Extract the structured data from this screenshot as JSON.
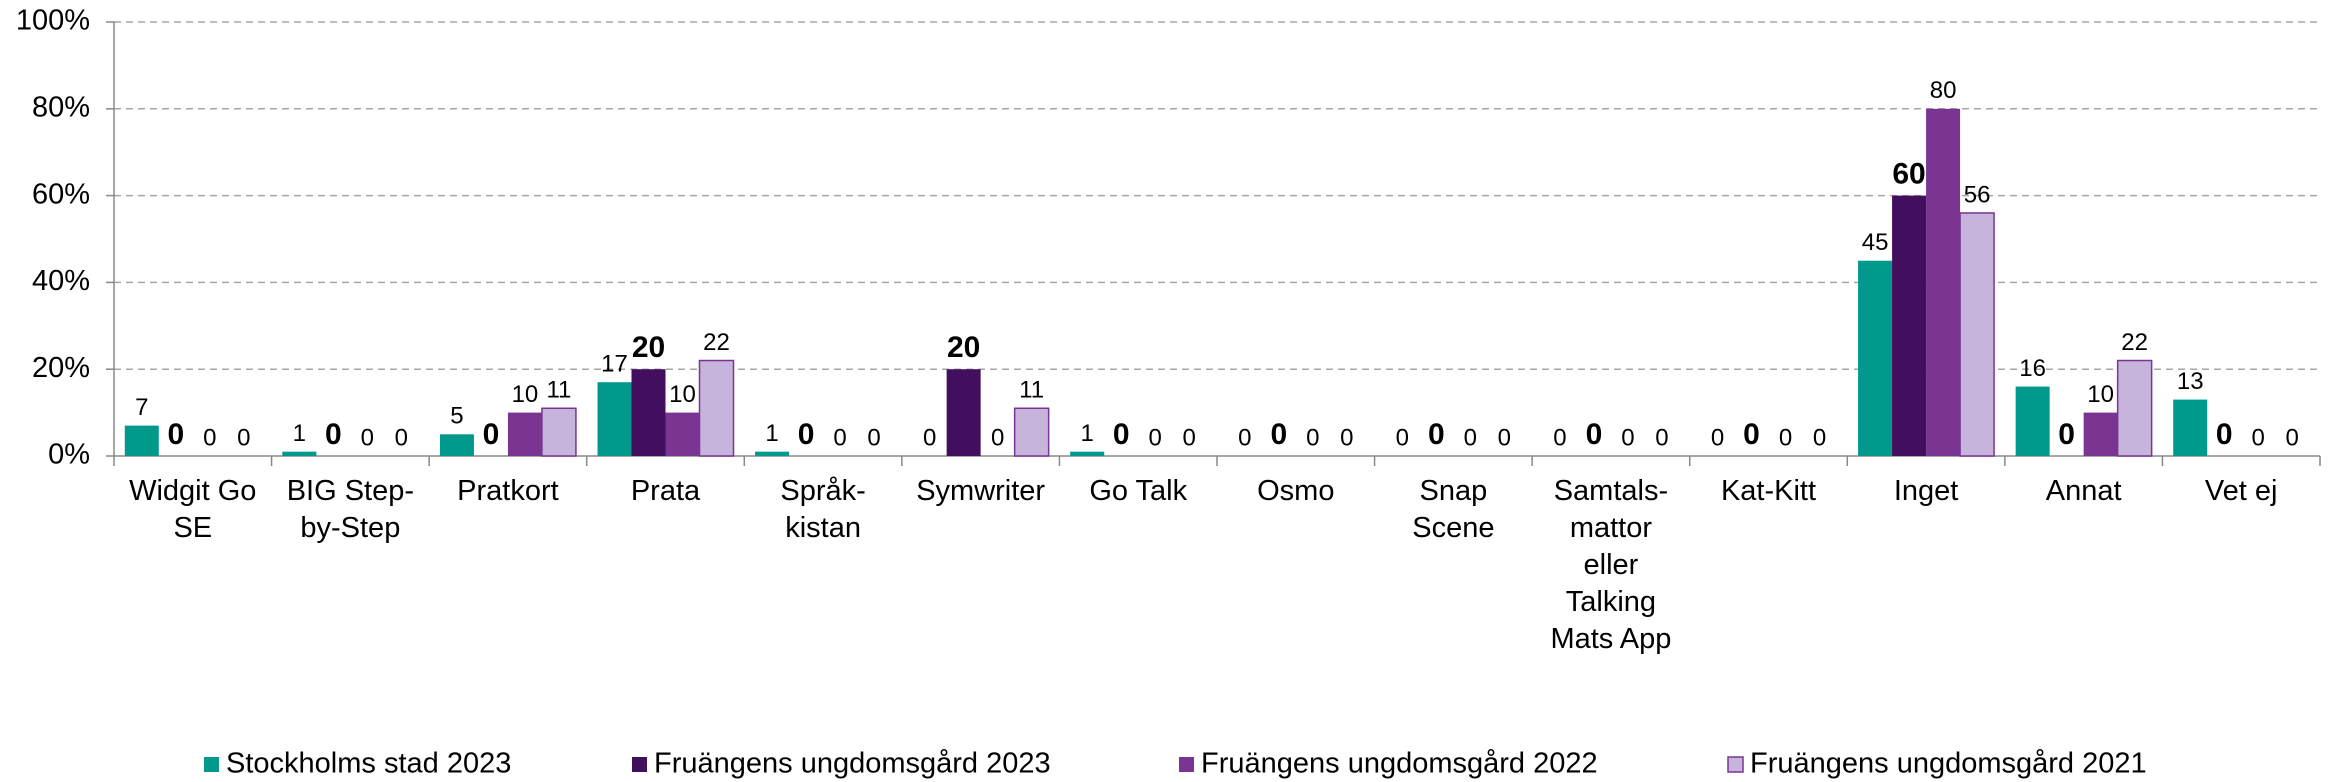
{
  "chart_data": {
    "type": "bar",
    "categories": [
      "Widgit Go SE",
      "BIG Step-by-Step",
      "Pratkort",
      "Prata",
      "Språk-kistan",
      "Symwriter",
      "Go Talk",
      "Osmo",
      "Snap Scene",
      "Samtals-mattor eller Talking Mats App",
      "Kat-Kitt",
      "Inget",
      "Annat",
      "Vet ej"
    ],
    "series": [
      {
        "name": "Stockholms stad 2023",
        "color": "#00998c",
        "values": [
          7,
          1,
          5,
          17,
          1,
          0,
          1,
          0,
          0,
          0,
          0,
          45,
          16,
          13
        ]
      },
      {
        "name": "Fruängens ungdomsgård 2023",
        "color": "#420f5e",
        "values": [
          0,
          0,
          0,
          20,
          0,
          20,
          0,
          0,
          0,
          0,
          0,
          60,
          0,
          0
        ]
      },
      {
        "name": "Fruängens ungdomsgård 2022",
        "color": "#7a3491",
        "values": [
          0,
          0,
          10,
          10,
          0,
          0,
          0,
          0,
          0,
          0,
          0,
          80,
          10,
          0
        ]
      },
      {
        "name": "Fruängens ungdomsgård 2021",
        "color": "#c6b4dc",
        "values": [
          0,
          0,
          11,
          22,
          0,
          11,
          0,
          0,
          0,
          0,
          0,
          56,
          22,
          0
        ]
      }
    ],
    "ylim": [
      0,
      100
    ],
    "yticks": [
      {
        "value": 0,
        "label": "0%"
      },
      {
        "value": 20,
        "label": "20%"
      },
      {
        "value": 40,
        "label": "40%"
      },
      {
        "value": 60,
        "label": "60%"
      },
      {
        "value": 80,
        "label": "80%"
      },
      {
        "value": 100,
        "label": "100%"
      }
    ],
    "grid": true
  }
}
